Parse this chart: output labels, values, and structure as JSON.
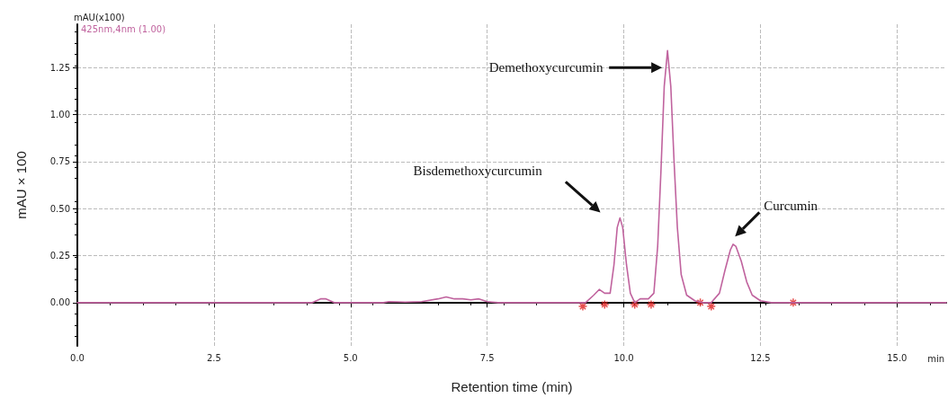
{
  "chart_data": {
    "type": "line",
    "xlabel": "Retention time (min)",
    "ylabel": "mAU × 100",
    "xlim": [
      0,
      15.9
    ],
    "ylim": [
      -0.23,
      1.48
    ],
    "xticks": [
      {
        "value": 0,
        "label": "0.0"
      },
      {
        "value": 2.5,
        "label": "2.5"
      },
      {
        "value": 5,
        "label": "5.0"
      },
      {
        "value": 7.5,
        "label": "7.5"
      },
      {
        "value": 10,
        "label": "10.0"
      },
      {
        "value": 12.5,
        "label": "12.5"
      },
      {
        "value": 15,
        "label": "15.0"
      }
    ],
    "yticks": [
      {
        "value": 0,
        "label": "0.00"
      },
      {
        "value": 0.25,
        "label": "0.25"
      },
      {
        "value": 0.5,
        "label": "0.50"
      },
      {
        "value": 0.75,
        "label": "0.75"
      },
      {
        "value": 1,
        "label": "1.00"
      },
      {
        "value": 1.25,
        "label": "1.25"
      }
    ],
    "grid": true,
    "series": [
      {
        "color": "#c0639e",
        "marker": "none",
        "line_style": "solid",
        "x": [
          0,
          4.3,
          4.45,
          4.55,
          4.7,
          5.6,
          5.7,
          6.0,
          6.3,
          6.6,
          6.75,
          6.9,
          7.05,
          7.2,
          7.35,
          7.5,
          7.7,
          9.3,
          9.45,
          9.55,
          9.65,
          9.75,
          9.82,
          9.88,
          9.93,
          9.98,
          10.05,
          10.12,
          10.2,
          10.3,
          10.45,
          10.55,
          10.62,
          10.68,
          10.74,
          10.8,
          10.86,
          10.92,
          10.98,
          11.05,
          11.15,
          11.3,
          11.45,
          11.6,
          11.75,
          11.85,
          11.95,
          12.0,
          12.05,
          12.15,
          12.25,
          12.35,
          12.5,
          12.7,
          15.9
        ],
        "values": [
          0,
          0,
          0.02,
          0.02,
          0,
          0,
          0.005,
          0.003,
          0.005,
          0.02,
          0.03,
          0.02,
          0.02,
          0.015,
          0.02,
          0.005,
          0,
          0,
          0.04,
          0.07,
          0.05,
          0.05,
          0.2,
          0.4,
          0.45,
          0.4,
          0.2,
          0.05,
          0,
          0.02,
          0.02,
          0.05,
          0.3,
          0.7,
          1.15,
          1.34,
          1.15,
          0.75,
          0.4,
          0.15,
          0.04,
          0.01,
          0,
          0,
          0.05,
          0.17,
          0.28,
          0.31,
          0.3,
          0.22,
          0.11,
          0.04,
          0.01,
          0,
          0
        ]
      },
      {
        "type": "scatter",
        "color": "#e02020",
        "marker": "cross",
        "x": [
          9.25,
          9.65,
          10.2,
          10.5,
          11.4,
          11.6,
          13.1
        ],
        "values": [
          -0.02,
          -0.01,
          -0.01,
          -0.01,
          0,
          -0.02,
          0
        ]
      }
    ],
    "annotations": [
      "mAU(x100)",
      "425nm,4nm (1.00)",
      "min",
      "Demethoxycurcumin",
      "Bisdemethoxycurcumin",
      "Curcumin"
    ]
  }
}
